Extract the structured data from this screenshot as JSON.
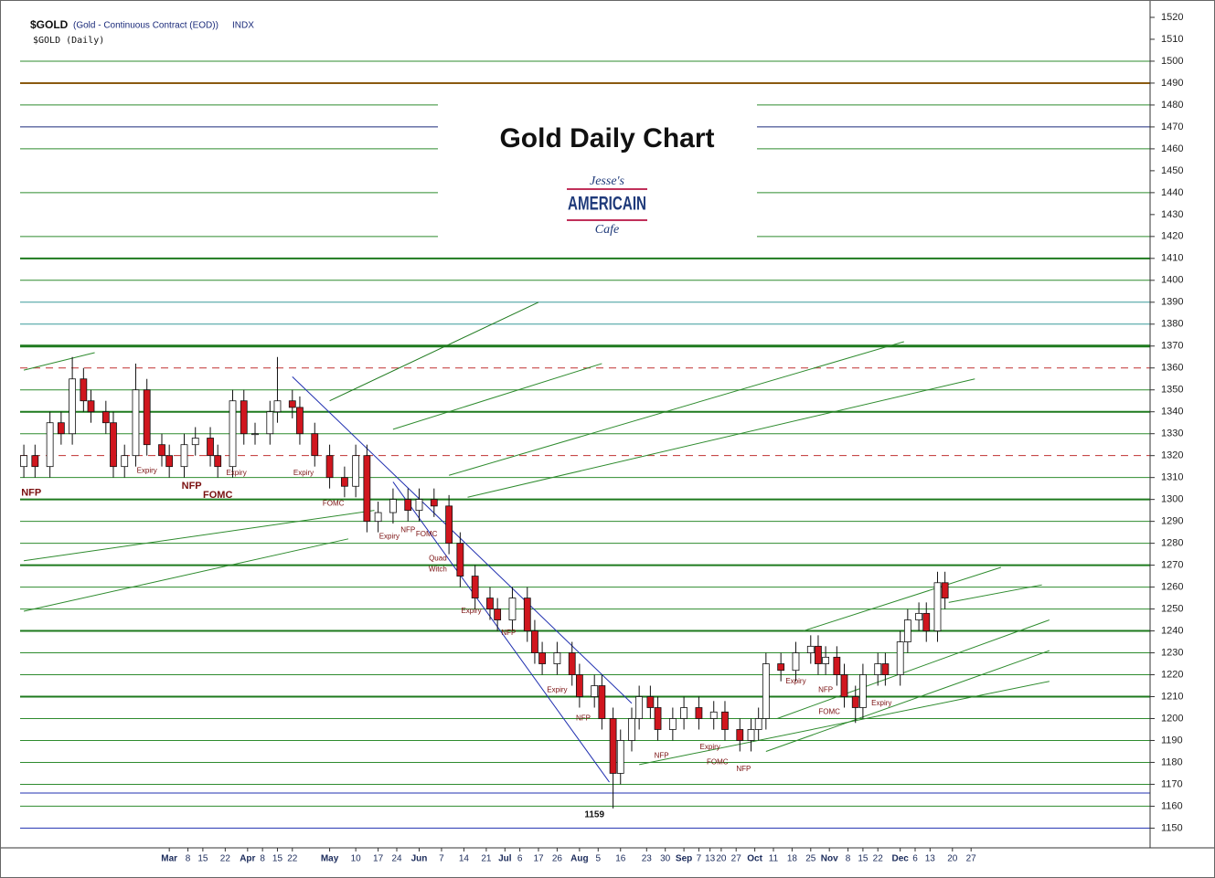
{
  "header": {
    "symbol": "$GOLD",
    "description": "(Gold - Continuous Contract (EOD))",
    "exchange": "INDX",
    "subtitle": "$GOLD (Daily)"
  },
  "logo": {
    "top": "Jesse's",
    "middle": "AMERICAIN",
    "bottom": "Cafe"
  },
  "chart_data": {
    "type": "candlestick",
    "title": "Gold Daily Chart",
    "xlim": [
      0,
      303
    ],
    "ylim": [
      1141,
      1525
    ],
    "yticks": [
      1150,
      1160,
      1170,
      1180,
      1190,
      1200,
      1210,
      1220,
      1230,
      1240,
      1250,
      1260,
      1270,
      1280,
      1290,
      1300,
      1310,
      1320,
      1330,
      1340,
      1350,
      1360,
      1370,
      1380,
      1390,
      1400,
      1410,
      1420,
      1430,
      1440,
      1450,
      1460,
      1470,
      1480,
      1490,
      1500,
      1510,
      1520
    ],
    "xticks": [
      {
        "value": 40,
        "label": "Mar"
      },
      {
        "value": 45,
        "label": "8"
      },
      {
        "value": 49,
        "label": "15"
      },
      {
        "value": 55,
        "label": "22"
      },
      {
        "value": 61,
        "label": "Apr"
      },
      {
        "value": 65,
        "label": "8"
      },
      {
        "value": 69,
        "label": "15"
      },
      {
        "value": 73,
        "label": "22"
      },
      {
        "value": 83,
        "label": "May"
      },
      {
        "value": 90,
        "label": "10"
      },
      {
        "value": 96,
        "label": "17"
      },
      {
        "value": 101,
        "label": "24"
      },
      {
        "value": 107,
        "label": "Jun"
      },
      {
        "value": 113,
        "label": "7"
      },
      {
        "value": 119,
        "label": "14"
      },
      {
        "value": 125,
        "label": "21"
      },
      {
        "value": 130,
        "label": "Jul"
      },
      {
        "value": 134,
        "label": "6"
      },
      {
        "value": 139,
        "label": "17"
      },
      {
        "value": 144,
        "label": "26"
      },
      {
        "value": 150,
        "label": "Aug"
      },
      {
        "value": 155,
        "label": "5"
      },
      {
        "value": 161,
        "label": "16"
      },
      {
        "value": 168,
        "label": "23"
      },
      {
        "value": 173,
        "label": "30"
      },
      {
        "value": 178,
        "label": "Sep"
      },
      {
        "value": 182,
        "label": "7"
      },
      {
        "value": 185,
        "label": "13"
      },
      {
        "value": 188,
        "label": "20"
      },
      {
        "value": 192,
        "label": "27"
      },
      {
        "value": 197,
        "label": "Oct"
      },
      {
        "value": 202,
        "label": "11"
      },
      {
        "value": 207,
        "label": "18"
      },
      {
        "value": 212,
        "label": "25"
      },
      {
        "value": 217,
        "label": "Nov"
      },
      {
        "value": 222,
        "label": "8"
      },
      {
        "value": 226,
        "label": "15"
      },
      {
        "value": 230,
        "label": "22"
      },
      {
        "value": 236,
        "label": "Dec"
      },
      {
        "value": 240,
        "label": "6"
      },
      {
        "value": 244,
        "label": "13"
      },
      {
        "value": 250,
        "label": "20"
      },
      {
        "value": 255,
        "label": "27"
      }
    ],
    "up_color": "#ffffff",
    "down_color": "#d0161e",
    "x": [
      1,
      4,
      8,
      11,
      14,
      17,
      19,
      23,
      25,
      28,
      31,
      34,
      38,
      40,
      44,
      47,
      51,
      53,
      57,
      60,
      63,
      67,
      69,
      73,
      75,
      79,
      83,
      87,
      90,
      93,
      96,
      100,
      104,
      107,
      111,
      115,
      118,
      122,
      126,
      128,
      132,
      136,
      138,
      140,
      144,
      148,
      150,
      154,
      156,
      159,
      161,
      164,
      166,
      169,
      171,
      175,
      178,
      182,
      186,
      189,
      193,
      196,
      198,
      200,
      204,
      208,
      212,
      214,
      216,
      219,
      221,
      224,
      226,
      230,
      232,
      236,
      238,
      241,
      243,
      246,
      248
    ],
    "open": [
      1315,
      1320,
      1315,
      1335,
      1330,
      1355,
      1345,
      1340,
      1335,
      1315,
      1320,
      1350,
      1325,
      1320,
      1315,
      1325,
      1328,
      1320,
      1315,
      1345,
      1330,
      1330,
      1340,
      1345,
      1342,
      1330,
      1320,
      1310,
      1306,
      1320,
      1290,
      1294,
      1300,
      1295,
      1300,
      1297,
      1280,
      1265,
      1255,
      1250,
      1245,
      1255,
      1240,
      1230,
      1225,
      1230,
      1220,
      1210,
      1215,
      1200,
      1175,
      1190,
      1200,
      1210,
      1205,
      1195,
      1200,
      1205,
      1200,
      1203,
      1195,
      1190,
      1195,
      1200,
      1225,
      1222,
      1230,
      1233,
      1225,
      1228,
      1220,
      1210,
      1205,
      1220,
      1225,
      1220,
      1235,
      1245,
      1248,
      1240,
      1262
    ],
    "high": [
      1325,
      1325,
      1340,
      1340,
      1365,
      1360,
      1350,
      1345,
      1340,
      1325,
      1362,
      1355,
      1330,
      1325,
      1330,
      1333,
      1333,
      1325,
      1350,
      1350,
      1335,
      1345,
      1365,
      1350,
      1347,
      1335,
      1325,
      1315,
      1325,
      1325,
      1299,
      1305,
      1305,
      1305,
      1305,
      1302,
      1285,
      1270,
      1260,
      1255,
      1260,
      1260,
      1245,
      1235,
      1235,
      1235,
      1225,
      1220,
      1220,
      1205,
      1195,
      1205,
      1215,
      1215,
      1210,
      1205,
      1210,
      1210,
      1208,
      1208,
      1200,
      1200,
      1205,
      1230,
      1230,
      1235,
      1238,
      1238,
      1233,
      1233,
      1225,
      1215,
      1225,
      1230,
      1230,
      1240,
      1250,
      1253,
      1253,
      1267,
      1267
    ],
    "low": [
      1310,
      1310,
      1310,
      1325,
      1325,
      1340,
      1335,
      1330,
      1310,
      1310,
      1315,
      1320,
      1315,
      1310,
      1310,
      1320,
      1315,
      1310,
      1310,
      1325,
      1325,
      1325,
      1335,
      1337,
      1325,
      1315,
      1305,
      1301,
      1301,
      1285,
      1285,
      1289,
      1290,
      1290,
      1292,
      1275,
      1260,
      1250,
      1245,
      1240,
      1240,
      1235,
      1225,
      1220,
      1220,
      1215,
      1205,
      1205,
      1195,
      1159,
      1170,
      1185,
      1195,
      1200,
      1190,
      1190,
      1195,
      1195,
      1195,
      1190,
      1185,
      1185,
      1190,
      1195,
      1217,
      1217,
      1225,
      1220,
      1220,
      1215,
      1205,
      1198,
      1200,
      1215,
      1215,
      1215,
      1230,
      1240,
      1235,
      1235,
      1250
    ],
    "close": [
      1320,
      1315,
      1335,
      1330,
      1355,
      1345,
      1340,
      1335,
      1315,
      1320,
      1350,
      1325,
      1320,
      1315,
      1325,
      1328,
      1320,
      1315,
      1345,
      1330,
      1330,
      1340,
      1345,
      1342,
      1330,
      1320,
      1310,
      1306,
      1320,
      1290,
      1294,
      1300,
      1295,
      1300,
      1297,
      1280,
      1265,
      1255,
      1250,
      1245,
      1255,
      1240,
      1230,
      1225,
      1230,
      1220,
      1210,
      1215,
      1200,
      1175,
      1190,
      1200,
      1210,
      1205,
      1195,
      1200,
      1205,
      1200,
      1203,
      1195,
      1190,
      1195,
      1200,
      1225,
      1222,
      1230,
      1233,
      1225,
      1228,
      1220,
      1210,
      1205,
      1220,
      1225,
      1220,
      1235,
      1245,
      1248,
      1240,
      1262,
      1255
    ],
    "levels": [
      {
        "value": 1500,
        "color": "#2e8b2e",
        "width": 1
      },
      {
        "value": 1490,
        "color": "#8b5a10",
        "width": 2
      },
      {
        "value": 1480,
        "color": "#2e8b2e",
        "width": 1
      },
      {
        "value": 1470,
        "color": "#1a2a7a",
        "width": 1
      },
      {
        "value": 1460,
        "color": "#2e8b2e",
        "width": 1
      },
      {
        "value": 1440,
        "color": "#2e8b2e",
        "width": 1
      },
      {
        "value": 1420,
        "color": "#2e8b2e",
        "width": 1
      },
      {
        "value": 1410,
        "color": "#1e7a1e",
        "width": 2
      },
      {
        "value": 1400,
        "color": "#2e8b2e",
        "width": 1
      },
      {
        "value": 1390,
        "color": "#3a9a9a",
        "width": 1
      },
      {
        "value": 1380,
        "color": "#3a9a9a",
        "width": 1
      },
      {
        "value": 1370,
        "color": "#1e7a1e",
        "width": 3
      },
      {
        "value": 1360,
        "color": "#c03030",
        "width": 1,
        "dash": true
      },
      {
        "value": 1350,
        "color": "#2e8b2e",
        "width": 1
      },
      {
        "value": 1340,
        "color": "#1e7a1e",
        "width": 2
      },
      {
        "value": 1330,
        "color": "#2e8b2e",
        "width": 1
      },
      {
        "value": 1320,
        "color": "#c03030",
        "width": 1,
        "dash": true
      },
      {
        "value": 1310,
        "color": "#2e8b2e",
        "width": 1
      },
      {
        "value": 1300,
        "color": "#1e7a1e",
        "width": 2
      },
      {
        "value": 1290,
        "color": "#2e8b2e",
        "width": 1
      },
      {
        "value": 1280,
        "color": "#2e8b2e",
        "width": 1
      },
      {
        "value": 1270,
        "color": "#1e7a1e",
        "width": 2
      },
      {
        "value": 1260,
        "color": "#2e8b2e",
        "width": 1
      },
      {
        "value": 1250,
        "color": "#2e8b2e",
        "width": 1
      },
      {
        "value": 1240,
        "color": "#1e7a1e",
        "width": 2
      },
      {
        "value": 1230,
        "color": "#2e8b2e",
        "width": 1
      },
      {
        "value": 1220,
        "color": "#2e8b2e",
        "width": 1
      },
      {
        "value": 1210,
        "color": "#1e7a1e",
        "width": 2
      },
      {
        "value": 1200,
        "color": "#2e8b2e",
        "width": 1
      },
      {
        "value": 1190,
        "color": "#2e8b2e",
        "width": 1
      },
      {
        "value": 1180,
        "color": "#2e8b2e",
        "width": 1
      },
      {
        "value": 1170,
        "color": "#2e8b2e",
        "width": 1
      },
      {
        "value": 1166,
        "color": "#2030b0",
        "width": 1
      },
      {
        "value": 1160,
        "color": "#2e8b2e",
        "width": 1
      },
      {
        "value": 1150,
        "color": "#2030b0",
        "width": 1
      }
    ],
    "trendlines": [
      {
        "x": [
          73,
          164
        ],
        "y": [
          1356,
          1207
        ],
        "color": "#2030b0"
      },
      {
        "x": [
          100,
          158
        ],
        "y": [
          1308,
          1171
        ],
        "color": "#2030b0"
      },
      {
        "x": [
          1,
          20
        ],
        "y": [
          1359,
          1367
        ],
        "color": "#2e8b2e"
      },
      {
        "x": [
          1,
          95
        ],
        "y": [
          1272,
          1295
        ],
        "color": "#2e8b2e"
      },
      {
        "x": [
          1,
          88
        ],
        "y": [
          1249,
          1282
        ],
        "color": "#2e8b2e"
      },
      {
        "x": [
          83,
          139
        ],
        "y": [
          1345,
          1390
        ],
        "color": "#1e7a1e"
      },
      {
        "x": [
          100,
          156
        ],
        "y": [
          1332,
          1362
        ],
        "color": "#2e8b2e"
      },
      {
        "x": [
          120,
          256
        ],
        "y": [
          1301,
          1355
        ],
        "color": "#2e8b2e"
      },
      {
        "x": [
          115,
          237
        ],
        "y": [
          1311,
          1372
        ],
        "color": "#2e8b2e"
      },
      {
        "x": [
          166,
          276
        ],
        "y": [
          1179,
          1217
        ],
        "color": "#2e8b2e"
      },
      {
        "x": [
          200,
          276
        ],
        "y": [
          1185,
          1231
        ],
        "color": "#2e8b2e"
      },
      {
        "x": [
          203,
          276
        ],
        "y": [
          1200,
          1245
        ],
        "color": "#2e8b2e"
      },
      {
        "x": [
          210,
          263
        ],
        "y": [
          1240,
          1269
        ],
        "color": "#2e8b2e"
      },
      {
        "x": [
          249,
          274
        ],
        "y": [
          1253,
          1261
        ],
        "color": "#2e8b2e"
      }
    ],
    "annotations": [
      {
        "text": "NFP",
        "x": 3,
        "y": 1303,
        "style": "bold"
      },
      {
        "text": "Expiry",
        "x": 34,
        "y": 1313,
        "style": "event"
      },
      {
        "text": "NFP",
        "x": 46,
        "y": 1306,
        "style": "bold"
      },
      {
        "text": "FOMC",
        "x": 53,
        "y": 1302,
        "style": "bold"
      },
      {
        "text": "Expiry",
        "x": 58,
        "y": 1312,
        "style": "event"
      },
      {
        "text": "Expiry",
        "x": 76,
        "y": 1312,
        "style": "event"
      },
      {
        "text": "FOMC",
        "x": 84,
        "y": 1298,
        "style": "event"
      },
      {
        "text": "Expiry",
        "x": 99,
        "y": 1283,
        "style": "event"
      },
      {
        "text": "NFP",
        "x": 104,
        "y": 1286,
        "style": "event"
      },
      {
        "text": "FOMC",
        "x": 109,
        "y": 1284,
        "style": "event"
      },
      {
        "text": "Quad",
        "x": 112,
        "y": 1273,
        "style": "event"
      },
      {
        "text": "Witch",
        "x": 112,
        "y": 1268,
        "style": "event"
      },
      {
        "text": "Expiry",
        "x": 121,
        "y": 1249,
        "style": "event"
      },
      {
        "text": "NFP",
        "x": 131,
        "y": 1239,
        "style": "event"
      },
      {
        "text": "Expiry",
        "x": 144,
        "y": 1213,
        "style": "event"
      },
      {
        "text": "NFP",
        "x": 151,
        "y": 1200,
        "style": "event"
      },
      {
        "text": "1159",
        "x": 154,
        "y": 1156,
        "style": "low"
      },
      {
        "text": "NFP",
        "x": 172,
        "y": 1183,
        "style": "event"
      },
      {
        "text": "Expiry",
        "x": 185,
        "y": 1187,
        "style": "event"
      },
      {
        "text": "FOMC",
        "x": 187,
        "y": 1180,
        "style": "event"
      },
      {
        "text": "NFP",
        "x": 194,
        "y": 1177,
        "style": "event"
      },
      {
        "text": "Expiry",
        "x": 208,
        "y": 1217,
        "style": "event"
      },
      {
        "text": "NFP",
        "x": 216,
        "y": 1213,
        "style": "event"
      },
      {
        "text": "FOMC",
        "x": 217,
        "y": 1203,
        "style": "event"
      },
      {
        "text": "Expiry",
        "x": 231,
        "y": 1207,
        "style": "event"
      }
    ]
  }
}
